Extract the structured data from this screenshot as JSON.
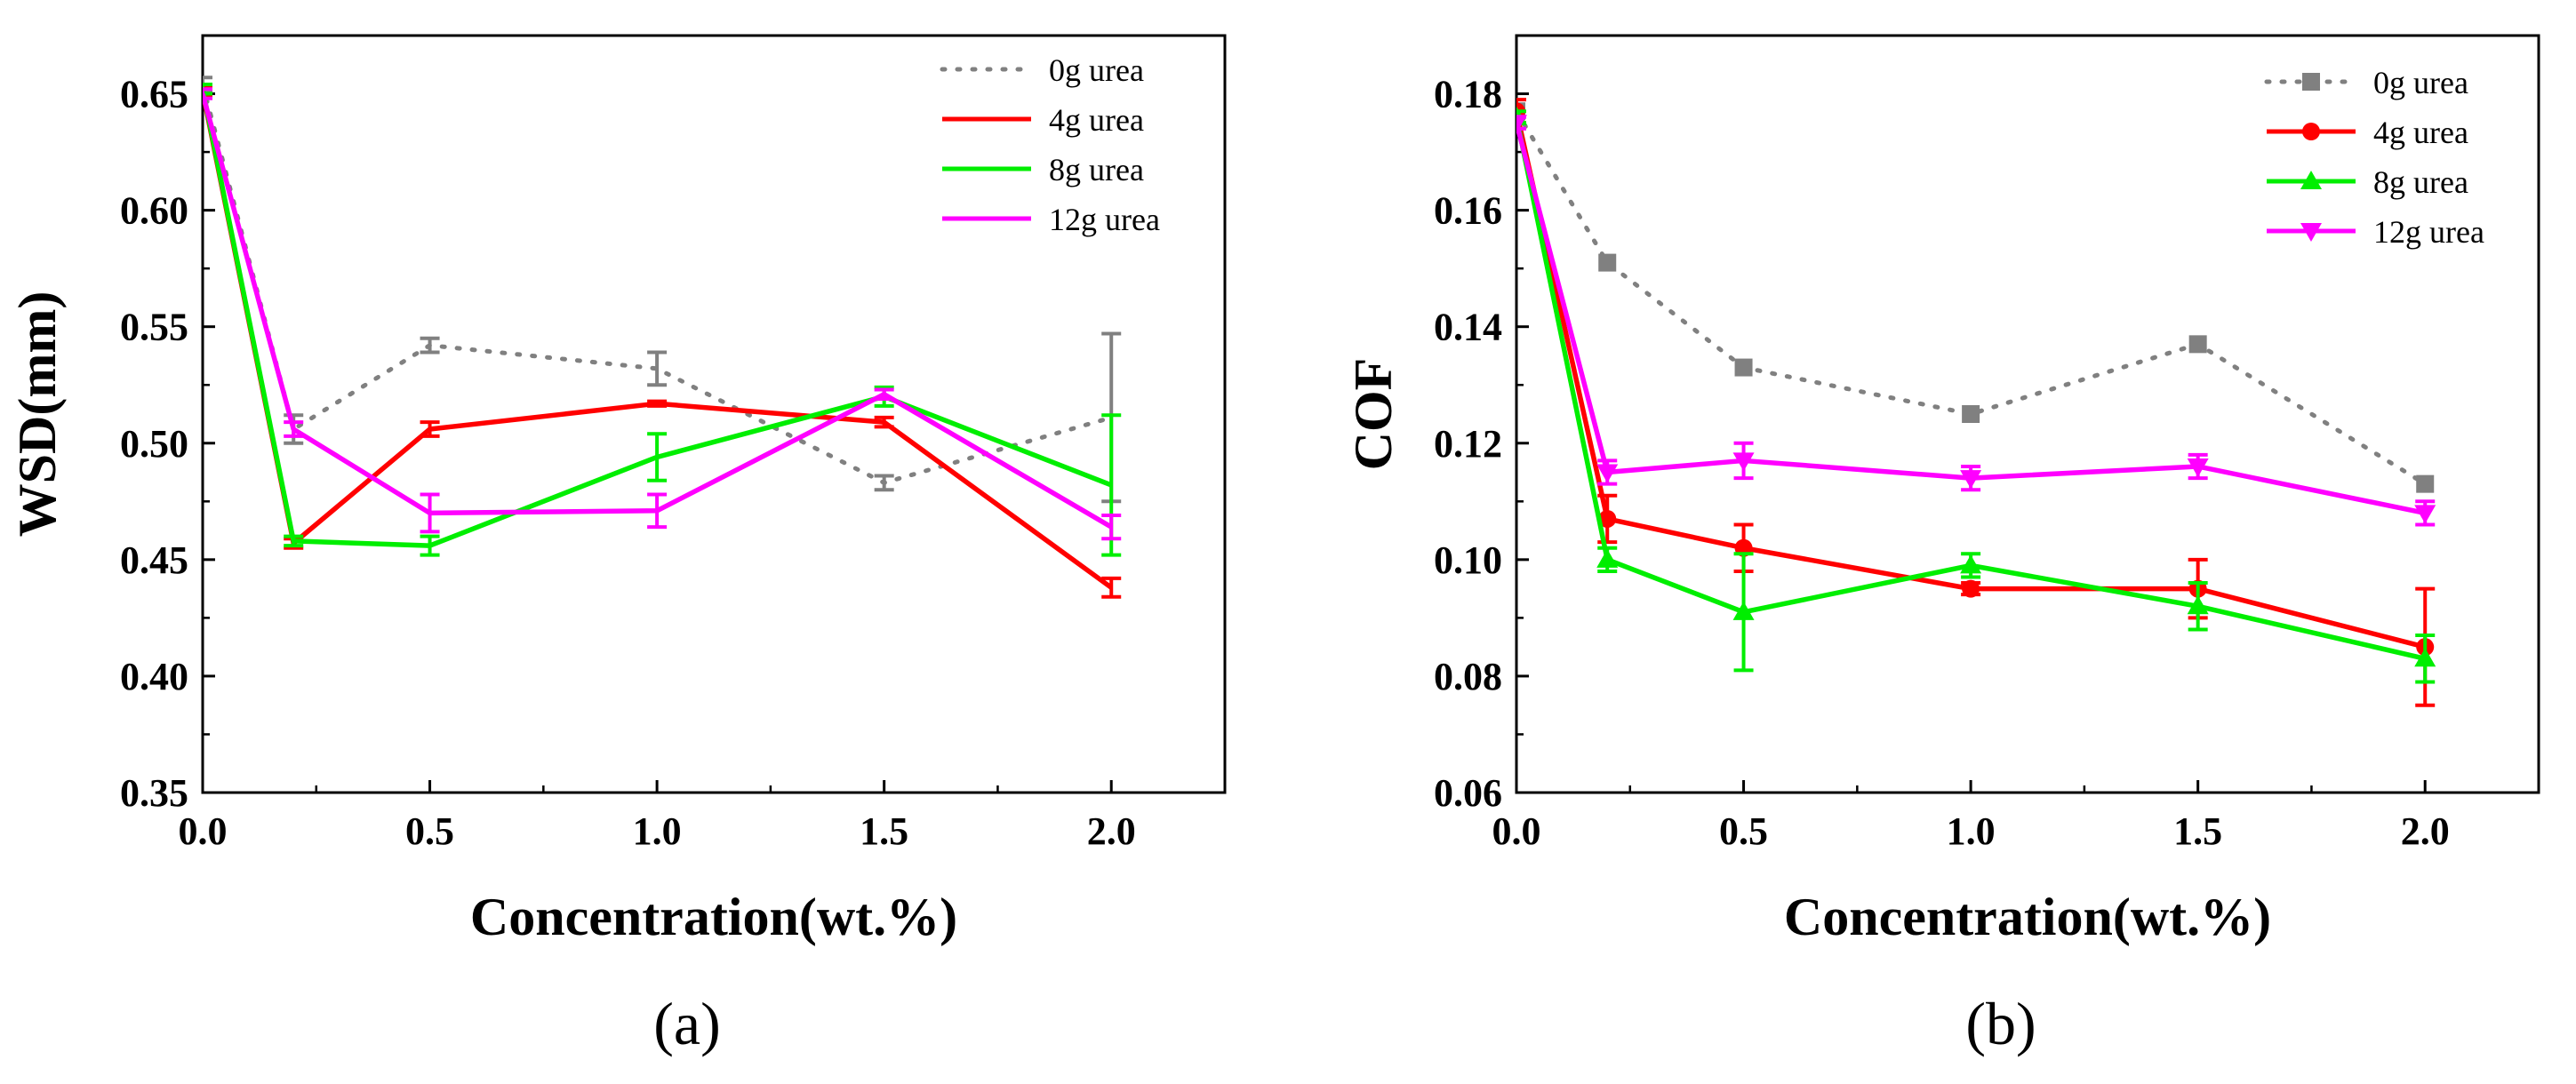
{
  "chart_data": [
    {
      "id": "a",
      "type": "line",
      "panel_label": "(a)",
      "xlabel": "Concentration(wt.%)",
      "ylabel": "WSD(mm)",
      "xlim": [
        0.0,
        2.25
      ],
      "ylim": [
        0.35,
        0.675
      ],
      "xticks": [
        "0.0",
        "0.5",
        "1.0",
        "1.5",
        "2.0"
      ],
      "xtick_values": [
        0.0,
        0.5,
        1.0,
        1.5,
        2.0
      ],
      "yticks": [
        "0.35",
        "0.40",
        "0.45",
        "0.50",
        "0.55",
        "0.60",
        "0.65"
      ],
      "ytick_values": [
        0.35,
        0.4,
        0.45,
        0.5,
        0.55,
        0.6,
        0.65
      ],
      "markers": false,
      "legend_position": "top-right",
      "series": [
        {
          "name": "0g urea",
          "color": "#808080",
          "dashed": true,
          "marker": "none",
          "x": [
            0.0,
            0.2,
            0.5,
            1.0,
            1.5,
            2.0
          ],
          "y": [
            0.654,
            0.506,
            0.542,
            0.532,
            0.483,
            0.511
          ],
          "err": [
            0.003,
            0.006,
            0.003,
            0.007,
            0.003,
            0.036
          ]
        },
        {
          "name": "4g urea",
          "color": "#ff0000",
          "dashed": false,
          "marker": "none",
          "x": [
            0.0,
            0.2,
            0.5,
            1.0,
            1.5,
            2.0
          ],
          "y": [
            0.651,
            0.457,
            0.506,
            0.517,
            0.509,
            0.438
          ],
          "err": [
            0.002,
            0.002,
            0.003,
            0.001,
            0.002,
            0.004
          ]
        },
        {
          "name": "8g urea",
          "color": "#00ee00",
          "dashed": false,
          "marker": "none",
          "x": [
            0.0,
            0.2,
            0.5,
            1.0,
            1.5,
            2.0
          ],
          "y": [
            0.652,
            0.458,
            0.456,
            0.494,
            0.52,
            0.482
          ],
          "err": [
            0.002,
            0.002,
            0.004,
            0.01,
            0.004,
            0.03
          ]
        },
        {
          "name": "12g urea",
          "color": "#ff00ff",
          "dashed": false,
          "marker": "none",
          "x": [
            0.0,
            0.2,
            0.5,
            1.0,
            1.5,
            2.0
          ],
          "y": [
            0.65,
            0.506,
            0.47,
            0.471,
            0.521,
            0.464
          ],
          "err": [
            0.002,
            0.003,
            0.008,
            0.007,
            0.002,
            0.005
          ]
        }
      ]
    },
    {
      "id": "b",
      "type": "line",
      "panel_label": "(b)",
      "xlabel": "Concentration(wt.%)",
      "ylabel": "COF",
      "xlim": [
        0.0,
        2.25
      ],
      "ylim": [
        0.06,
        0.19
      ],
      "xticks": [
        "0.0",
        "0.5",
        "1.0",
        "1.5",
        "2.0"
      ],
      "xtick_values": [
        0.0,
        0.5,
        1.0,
        1.5,
        2.0
      ],
      "yticks": [
        "0.06",
        "0.08",
        "0.10",
        "0.12",
        "0.14",
        "0.16",
        "0.18"
      ],
      "ytick_values": [
        0.06,
        0.08,
        0.1,
        0.12,
        0.14,
        0.16,
        0.18
      ],
      "markers": true,
      "legend_position": "top-right",
      "series": [
        {
          "name": "0g urea",
          "color": "#808080",
          "dashed": true,
          "marker": "square",
          "x": [
            0.0,
            0.2,
            0.5,
            1.0,
            1.5,
            2.0
          ],
          "y": [
            0.177,
            0.151,
            0.133,
            0.125,
            0.137,
            0.113
          ],
          "err": [
            0.0,
            0.0,
            0.0,
            0.0,
            0.0,
            0.0
          ]
        },
        {
          "name": "4g urea",
          "color": "#ff0000",
          "dashed": false,
          "marker": "circle",
          "x": [
            0.0,
            0.2,
            0.5,
            1.0,
            1.5,
            2.0
          ],
          "y": [
            0.177,
            0.107,
            0.102,
            0.095,
            0.095,
            0.085
          ],
          "err": [
            0.002,
            0.004,
            0.004,
            0.001,
            0.005,
            0.01
          ]
        },
        {
          "name": "8g urea",
          "color": "#00ee00",
          "dashed": false,
          "marker": "triangle-up",
          "x": [
            0.0,
            0.2,
            0.5,
            1.0,
            1.5,
            2.0
          ],
          "y": [
            0.176,
            0.1,
            0.091,
            0.099,
            0.092,
            0.083
          ],
          "err": [
            0.001,
            0.002,
            0.01,
            0.002,
            0.004,
            0.004
          ]
        },
        {
          "name": "12g urea",
          "color": "#ff00ff",
          "dashed": false,
          "marker": "triangle-down",
          "x": [
            0.0,
            0.2,
            0.5,
            1.0,
            1.5,
            2.0
          ],
          "y": [
            0.175,
            0.115,
            0.117,
            0.114,
            0.116,
            0.108
          ],
          "err": [
            0.001,
            0.002,
            0.003,
            0.002,
            0.002,
            0.002
          ]
        }
      ]
    }
  ]
}
